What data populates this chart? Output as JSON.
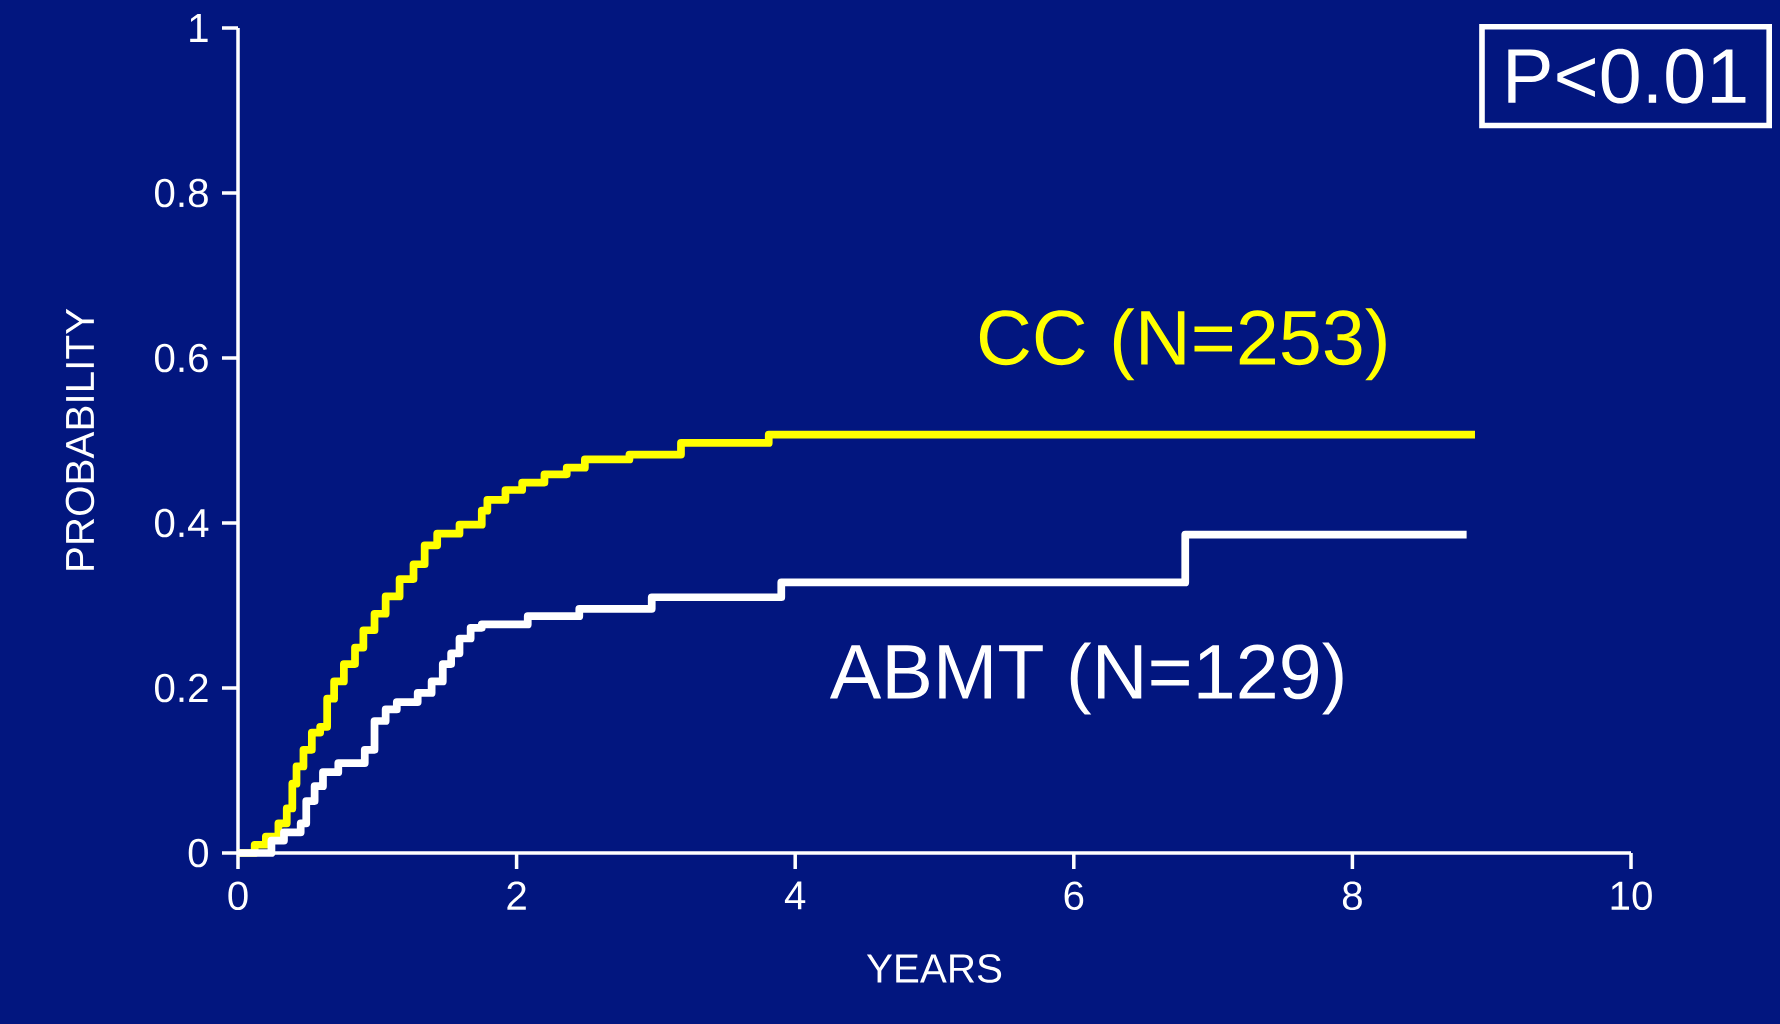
{
  "chart_data": {
    "type": "step",
    "xlabel": "YEARS",
    "ylabel": "PROBABILITY",
    "xlim": [
      0,
      10
    ],
    "ylim": [
      0,
      1
    ],
    "xticks": [
      0,
      2,
      4,
      6,
      8,
      10
    ],
    "yticks": [
      0,
      0.2,
      0.4,
      0.6,
      0.8,
      1
    ],
    "legend": false,
    "grid": false,
    "annotations": [
      "P<0.01"
    ],
    "series": [
      {
        "name": "CC (N=253)",
        "color": "#ffff00",
        "x": [
          0,
          0.12,
          0.2,
          0.29,
          0.35,
          0.39,
          0.42,
          0.47,
          0.53,
          0.59,
          0.64,
          0.69,
          0.76,
          0.84,
          0.9,
          0.98,
          1.06,
          1.16,
          1.26,
          1.34,
          1.43,
          1.59,
          1.75,
          1.79,
          1.92,
          2.04,
          2.2,
          2.36,
          2.49,
          2.81,
          3.18,
          3.81,
          8.88
        ],
        "values": [
          0,
          0.01,
          0.02,
          0.036,
          0.054,
          0.084,
          0.105,
          0.125,
          0.146,
          0.153,
          0.187,
          0.208,
          0.229,
          0.249,
          0.27,
          0.29,
          0.311,
          0.332,
          0.35,
          0.373,
          0.387,
          0.398,
          0.415,
          0.428,
          0.44,
          0.449,
          0.459,
          0.467,
          0.477,
          0.483,
          0.497,
          0.507,
          0.507
        ]
      },
      {
        "name": "ABMT (N=129)",
        "color": "#ffffff",
        "x": [
          0,
          0.2,
          0.24,
          0.33,
          0.45,
          0.49,
          0.55,
          0.61,
          0.72,
          0.91,
          0.98,
          1.06,
          1.14,
          1.29,
          1.39,
          1.47,
          1.53,
          1.59,
          1.67,
          1.75,
          2.08,
          2.45,
          2.97,
          3.9,
          6.8,
          8.82
        ],
        "values": [
          0,
          0,
          0.015,
          0.025,
          0.036,
          0.063,
          0.081,
          0.098,
          0.109,
          0.125,
          0.16,
          0.174,
          0.183,
          0.194,
          0.208,
          0.229,
          0.242,
          0.26,
          0.273,
          0.277,
          0.287,
          0.296,
          0.31,
          0.328,
          0.386,
          0.386
        ]
      }
    ]
  }
}
